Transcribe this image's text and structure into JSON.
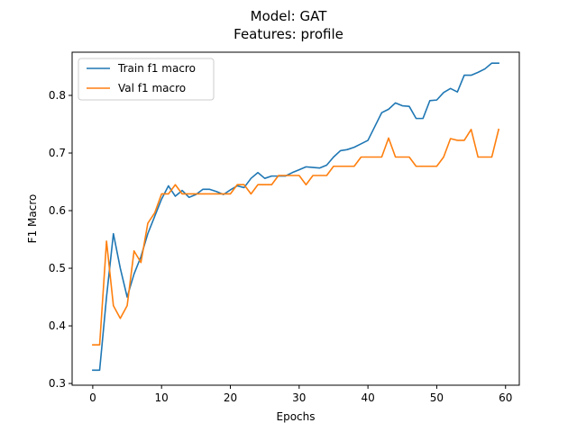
{
  "chart_data": {
    "type": "line",
    "title": "Model: GAT",
    "subtitle": "Features: profile",
    "xlabel": "Epochs",
    "ylabel": "F1 Macro",
    "xlim": [
      -3,
      62
    ],
    "ylim": [
      0.297,
      0.875
    ],
    "xticks": [
      0,
      10,
      20,
      30,
      40,
      50,
      60
    ],
    "yticks": [
      0.3,
      0.4,
      0.5,
      0.6,
      0.7,
      0.8
    ],
    "ytick_labels": [
      "0.3",
      "0.4",
      "0.5",
      "0.6",
      "0.7",
      "0.8"
    ],
    "grid": false,
    "legend_position": "top-left",
    "x": [
      0,
      1,
      2,
      3,
      4,
      5,
      6,
      7,
      8,
      9,
      10,
      11,
      12,
      13,
      14,
      15,
      16,
      17,
      18,
      19,
      20,
      21,
      22,
      23,
      24,
      25,
      26,
      27,
      28,
      29,
      30,
      31,
      32,
      33,
      34,
      35,
      36,
      37,
      38,
      39,
      40,
      41,
      42,
      43,
      44,
      45,
      46,
      47,
      48,
      49,
      50,
      51,
      52,
      53,
      54,
      55,
      56,
      57,
      58,
      59
    ],
    "series": [
      {
        "name": "Train f1 macro",
        "color": "#1f77b4",
        "values": [
          0.323,
          0.323,
          0.45,
          0.56,
          0.5,
          0.45,
          0.49,
          0.52,
          0.56,
          0.59,
          0.62,
          0.643,
          0.625,
          0.635,
          0.623,
          0.628,
          0.637,
          0.637,
          0.633,
          0.628,
          0.636,
          0.643,
          0.64,
          0.656,
          0.666,
          0.656,
          0.66,
          0.66,
          0.66,
          0.666,
          0.671,
          0.676,
          0.675,
          0.674,
          0.679,
          0.693,
          0.704,
          0.706,
          0.71,
          0.716,
          0.722,
          0.746,
          0.77,
          0.776,
          0.787,
          0.782,
          0.781,
          0.76,
          0.76,
          0.791,
          0.792,
          0.805,
          0.812,
          0.806,
          0.835,
          0.835,
          0.84,
          0.846,
          0.856,
          0.856
        ]
      },
      {
        "name": "Val f1 macro",
        "color": "#ff7f0e",
        "values": [
          0.367,
          0.367,
          0.547,
          0.435,
          0.413,
          0.435,
          0.53,
          0.51,
          0.578,
          0.596,
          0.629,
          0.629,
          0.645,
          0.629,
          0.629,
          0.629,
          0.629,
          0.629,
          0.629,
          0.629,
          0.629,
          0.645,
          0.645,
          0.629,
          0.645,
          0.645,
          0.645,
          0.661,
          0.661,
          0.661,
          0.661,
          0.645,
          0.661,
          0.661,
          0.661,
          0.677,
          0.677,
          0.677,
          0.677,
          0.693,
          0.693,
          0.693,
          0.693,
          0.726,
          0.693,
          0.693,
          0.693,
          0.677,
          0.677,
          0.677,
          0.677,
          0.693,
          0.725,
          0.722,
          0.722,
          0.741,
          0.693,
          0.693,
          0.693,
          0.741
        ]
      }
    ]
  }
}
